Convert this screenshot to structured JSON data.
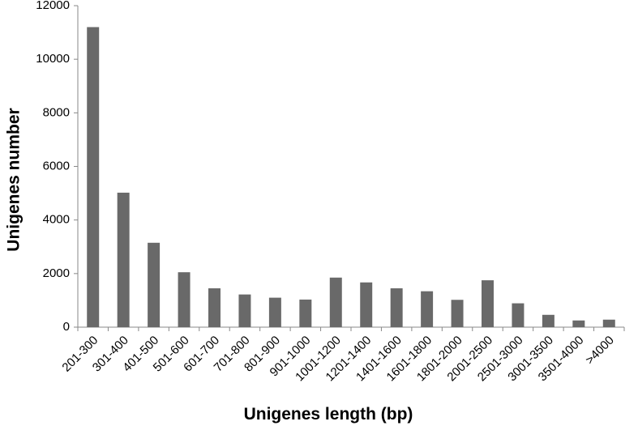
{
  "chart_data": {
    "type": "bar",
    "x_label": "Unigenes length (bp)",
    "y_label": "Unigenes number",
    "categories": [
      "201-300",
      "301-400",
      "401-500",
      "501-600",
      "601-700",
      "701-800",
      "801-900",
      "901-1000",
      "1001-1200",
      "1201-1400",
      "1401-1600",
      "1601-1800",
      "1801-2000",
      "2001-2500",
      "2501-3000",
      "3001-3500",
      "3501-4000",
      ">4000"
    ],
    "values": [
      11200,
      5020,
      3150,
      2050,
      1450,
      1220,
      1100,
      1030,
      1850,
      1670,
      1450,
      1340,
      1020,
      1750,
      890,
      460,
      250,
      280
    ],
    "color": "#696969",
    "ylim": [
      0,
      12000
    ],
    "yticks": [
      0,
      2000,
      4000,
      6000,
      8000,
      10000,
      12000
    ],
    "grid": false
  }
}
